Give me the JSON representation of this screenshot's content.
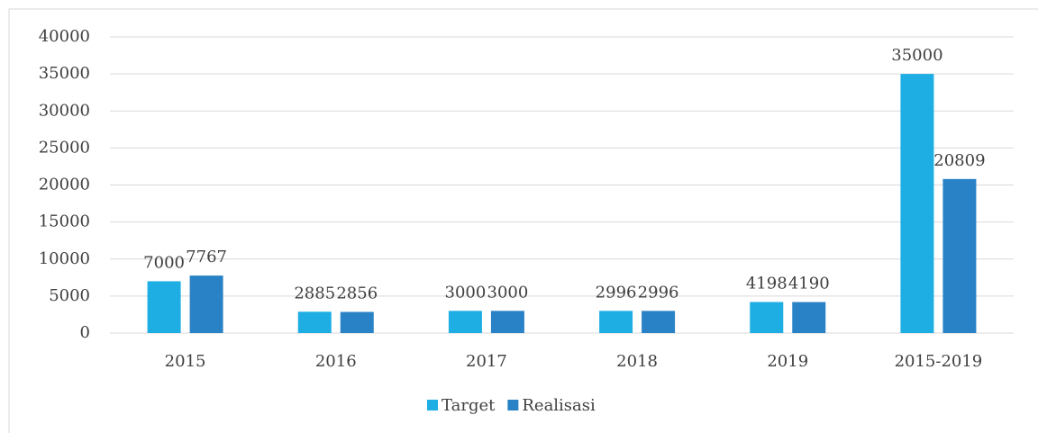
{
  "chart_data": {
    "type": "bar",
    "categories": [
      "2015",
      "2016",
      "2017",
      "2018",
      "2019",
      "2015-2019"
    ],
    "series": [
      {
        "name": "Target",
        "color": "#1faee4",
        "values": [
          7000,
          2885,
          3000,
          2996,
          4198,
          35000
        ]
      },
      {
        "name": "Realisasi",
        "color": "#2a82c6",
        "values": [
          7767,
          2856,
          3000,
          2996,
          4190,
          20809
        ]
      }
    ],
    "ylim": [
      0,
      40000
    ],
    "yticks": [
      0,
      5000,
      10000,
      15000,
      20000,
      25000,
      30000,
      35000,
      40000
    ],
    "grid": true,
    "legend": "bottom"
  }
}
